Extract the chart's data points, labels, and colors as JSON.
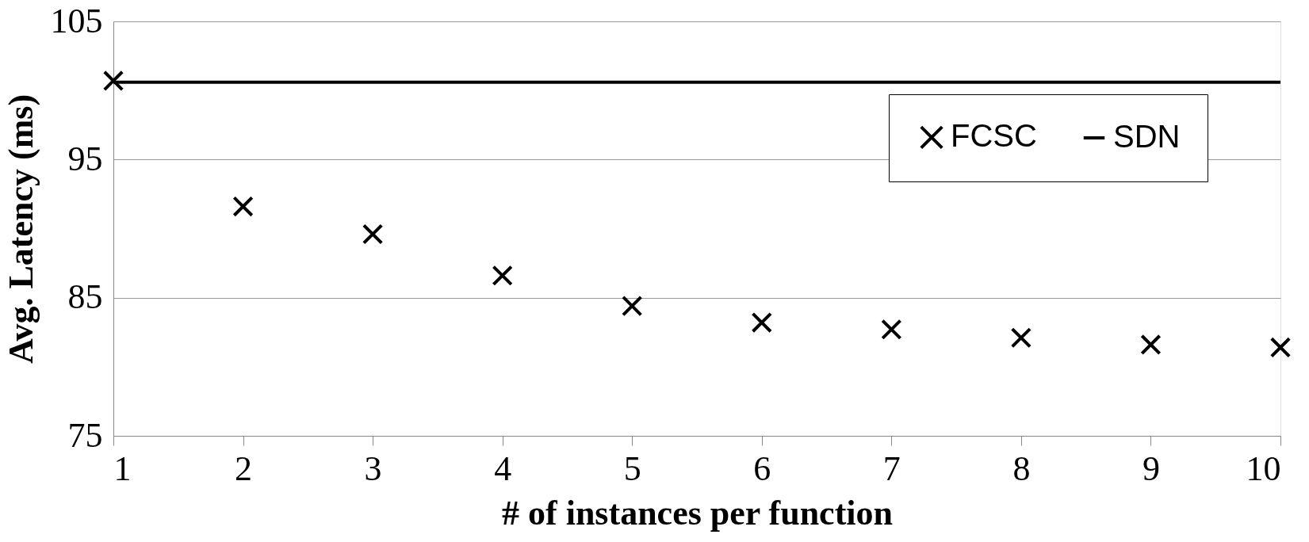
{
  "chart_data": {
    "type": "scatter",
    "xlabel": "# of instances per function",
    "ylabel": "Avg. Latency (ms)",
    "x": [
      1,
      2,
      3,
      4,
      5,
      6,
      7,
      8,
      9,
      10
    ],
    "series": [
      {
        "name": "FCSC",
        "color": "#000000",
        "marker": "cross",
        "values": [
          100.7,
          91.6,
          89.6,
          86.6,
          84.4,
          83.2,
          82.7,
          82.1,
          81.6,
          81.4
        ]
      },
      {
        "name": "SDN",
        "color": "#000000",
        "type": "line",
        "line_style": "solid",
        "values": [
          100.6,
          100.6,
          100.6,
          100.6,
          100.6,
          100.6,
          100.6,
          100.6,
          100.6,
          100.6
        ]
      }
    ],
    "xlim": [
      1,
      10
    ],
    "xticks": [
      1,
      2,
      3,
      4,
      5,
      6,
      7,
      8,
      9,
      10
    ],
    "ylim": [
      75,
      105
    ],
    "yticks": [
      75,
      85,
      95,
      105
    ],
    "grid": "y",
    "legend": "top right"
  }
}
